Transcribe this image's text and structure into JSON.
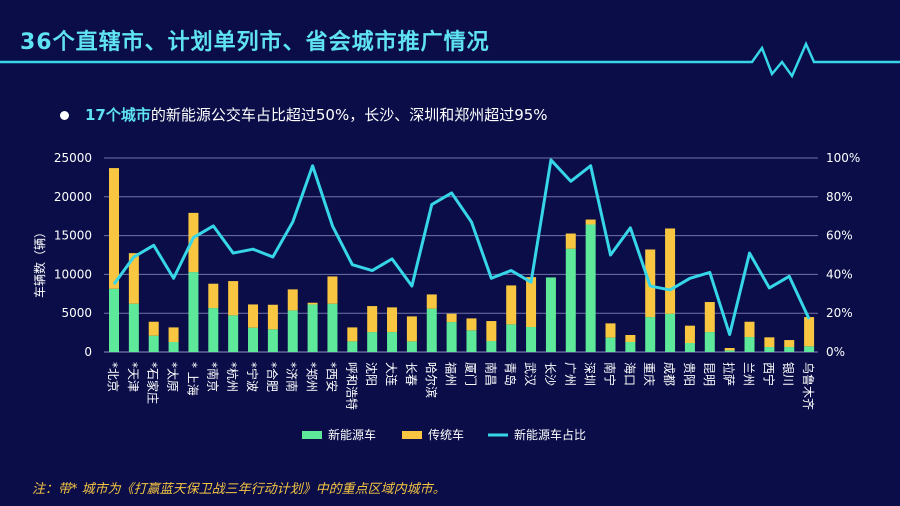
{
  "title": "36个直辖市、计划单列市、省会城市推广情况",
  "bullet": {
    "highlight": "17个城市",
    "text": "的新能源公交车占比超过50%，长沙、深圳和郑州超过95%"
  },
  "note": "注：带* 城市为《打赢蓝天保卫战三年行动计划》中的重点区域内城市。",
  "colors": {
    "background": "#0a0d48",
    "accent": "#5fe3f2",
    "new_energy": "#5ee89a",
    "traditional": "#f8c640",
    "ratio_line": "#36d6e8"
  },
  "chart_data": {
    "type": "bar",
    "stacked": true,
    "ylabel": "车辆数（辆）",
    "ylim": [
      0,
      25000
    ],
    "yticks": [
      "0",
      "5000",
      "10000",
      "15000",
      "20000",
      "25000"
    ],
    "y2lim": [
      0,
      100
    ],
    "y2ticks": [
      "0%",
      "20%",
      "40%",
      "60%",
      "80%",
      "100%"
    ],
    "grid": true,
    "legend_position": "bottom",
    "categories": [
      "*北京",
      "*天津",
      "*石家庄",
      "*太原",
      "* 上海",
      "*南京",
      "*杭州",
      "*宁波",
      "*合肥",
      "*济南",
      "*郑州",
      "*西安",
      "呼和浩特",
      "沈阳",
      "大连",
      "长春",
      "哈尔滨",
      "福州",
      "厦门",
      "南昌",
      "青岛",
      "武汉",
      "长沙",
      "广州",
      "深圳",
      "南宁",
      "海口",
      "重庆",
      "成都",
      "贵阳",
      "昆明",
      "拉萨",
      "兰州",
      "西宁",
      "银川",
      "乌鲁木齐"
    ],
    "series": [
      {
        "name": "新能源车",
        "type": "bar",
        "values": [
          8150,
          6220,
          2100,
          1290,
          10300,
          5660,
          4720,
          3130,
          2920,
          5360,
          6130,
          6220,
          1370,
          2570,
          2570,
          1370,
          5580,
          3860,
          2790,
          1420,
          3560,
          3220,
          9610,
          13300,
          16430,
          1850,
          1290,
          4500,
          4930,
          1160,
          2570,
          200,
          1930,
          640,
          640,
          730
        ]
      },
      {
        "name": "传统车",
        "type": "bar",
        "values": [
          15550,
          6520,
          1800,
          1880,
          7630,
          3140,
          4420,
          3000,
          3170,
          2710,
          220,
          3520,
          1800,
          3350,
          3180,
          3220,
          1840,
          1070,
          1540,
          2570,
          5020,
          6430,
          0,
          1970,
          640,
          1840,
          900,
          8710,
          10990,
          2230,
          3870,
          315,
          1970,
          1250,
          900,
          3770
        ]
      },
      {
        "name": "新能源车占比",
        "type": "line",
        "axis": "right",
        "values": [
          35,
          49,
          55,
          38,
          59,
          65,
          51,
          53,
          49,
          67,
          96,
          65,
          45,
          42,
          48,
          34,
          76,
          82,
          67,
          38,
          42,
          36,
          99,
          88,
          96,
          50,
          64,
          34,
          32,
          38,
          41,
          9,
          51,
          33,
          39,
          17
        ]
      }
    ]
  }
}
